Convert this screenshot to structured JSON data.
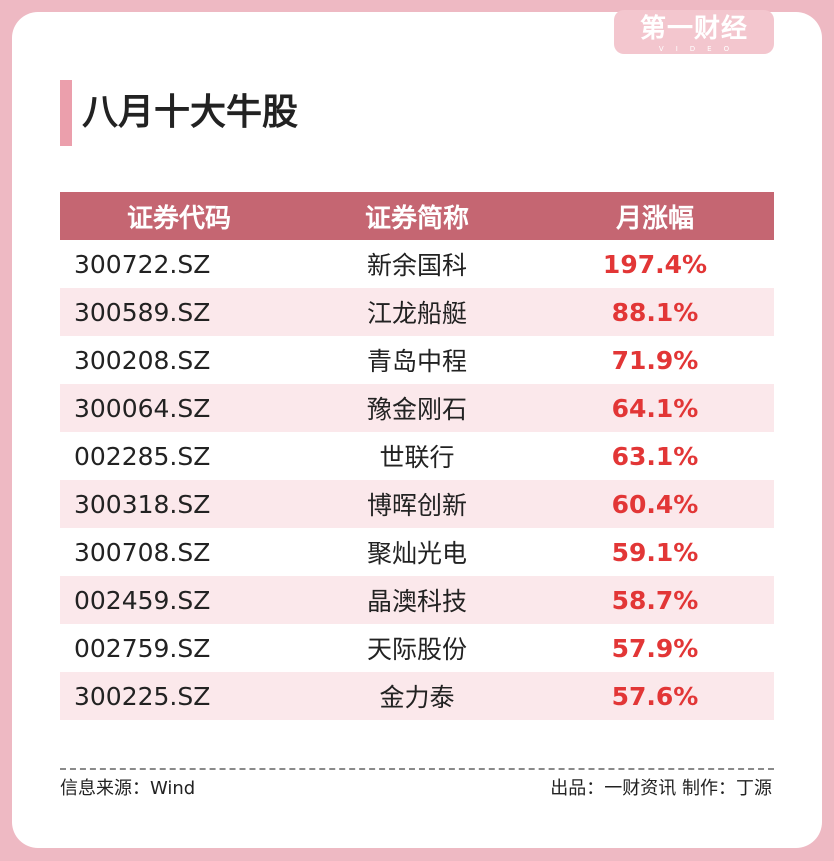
{
  "brand": {
    "logo_text": "第一财经",
    "logo_sub": "VIDEO"
  },
  "title": "八月十大牛股",
  "table": {
    "headers": [
      "证券代码",
      "证券简称",
      "月涨幅"
    ],
    "rows": [
      {
        "code": "300722.SZ",
        "name": "新余国科",
        "change": "197.4%"
      },
      {
        "code": "300589.SZ",
        "name": "江龙船艇",
        "change": "88.1%"
      },
      {
        "code": "300208.SZ",
        "name": "青岛中程",
        "change": "71.9%"
      },
      {
        "code": "300064.SZ",
        "name": "豫金刚石",
        "change": "64.1%"
      },
      {
        "code": "002285.SZ",
        "name": "世联行",
        "change": "63.1%"
      },
      {
        "code": "300318.SZ",
        "name": "博晖创新",
        "change": "60.4%"
      },
      {
        "code": "300708.SZ",
        "name": "聚灿光电",
        "change": "59.1%"
      },
      {
        "code": "002459.SZ",
        "name": "晶澳科技",
        "change": "58.7%"
      },
      {
        "code": "002759.SZ",
        "name": "天际股份",
        "change": "57.9%"
      },
      {
        "code": "300225.SZ",
        "name": "金力泰",
        "change": "57.6%"
      }
    ]
  },
  "footer": {
    "source": "信息来源：Wind",
    "credit": "出品：一财资讯  制作：丁源"
  },
  "colors": {
    "header_bg": "#c56672",
    "alt_row_bg": "#fbe8eb",
    "change_text": "#e23636",
    "frame": "#eeb9c3"
  }
}
